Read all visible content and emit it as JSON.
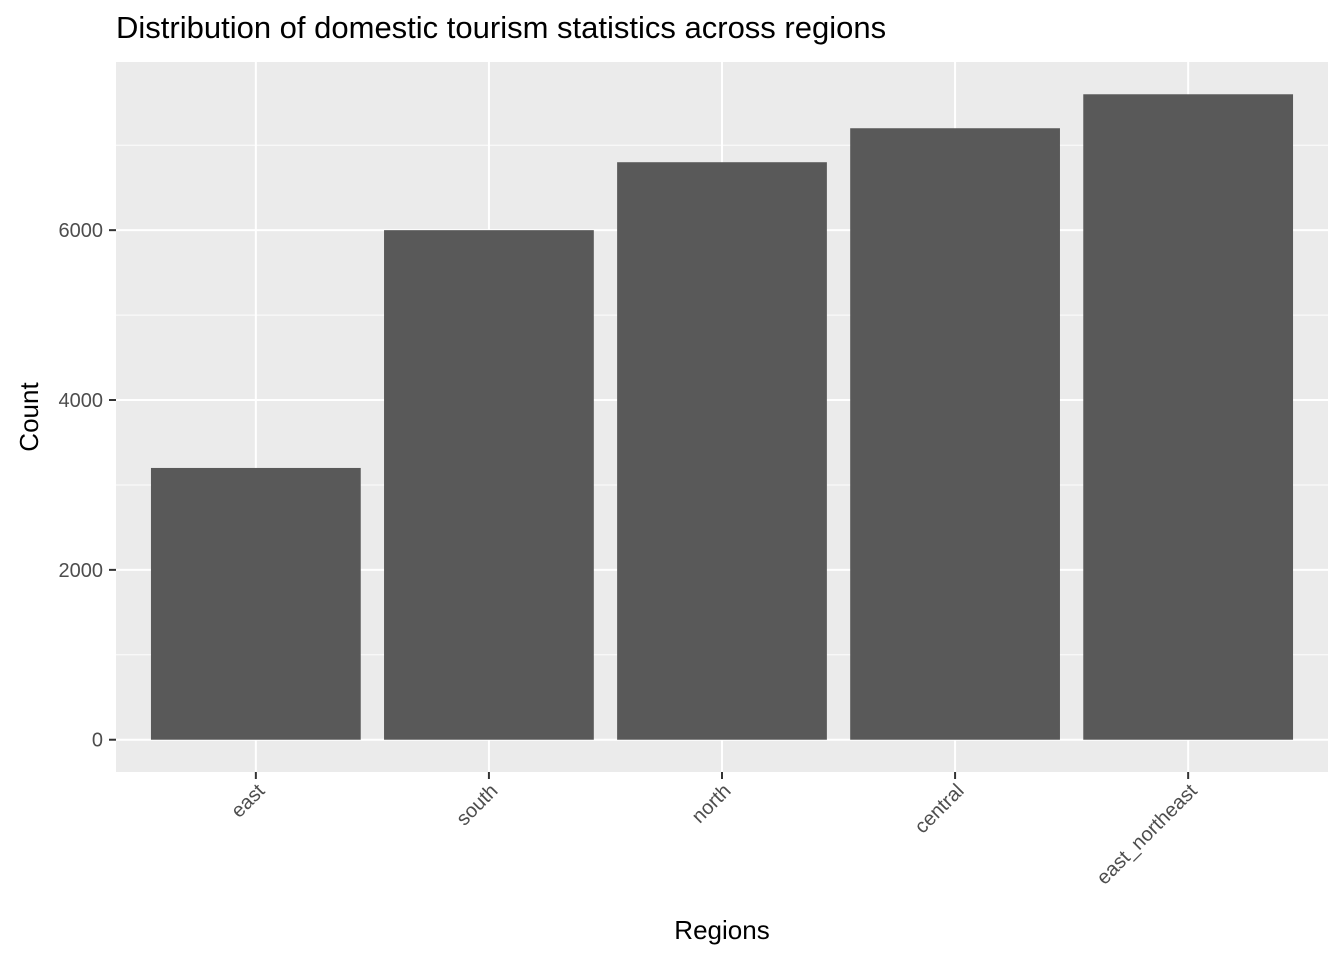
{
  "chart_data": {
    "type": "bar",
    "title": "Distribution of domestic tourism statistics across regions",
    "xlabel": "Regions",
    "ylabel": "Count",
    "categories": [
      "east",
      "south",
      "north",
      "central",
      "east_northeast"
    ],
    "values": [
      3200,
      6000,
      6800,
      7200,
      7600
    ],
    "ylim": [
      -380,
      7980
    ],
    "yticks": [
      0,
      2000,
      4000,
      6000
    ],
    "ytick_labels": [
      "0",
      "2000",
      "4000",
      "6000"
    ],
    "grid": true,
    "legend": "none",
    "colors": {
      "panel_background": "#ebebeb",
      "grid_major": "#ffffff",
      "bar_fill": "#595959",
      "tick_text": "#4d4d4d"
    }
  }
}
